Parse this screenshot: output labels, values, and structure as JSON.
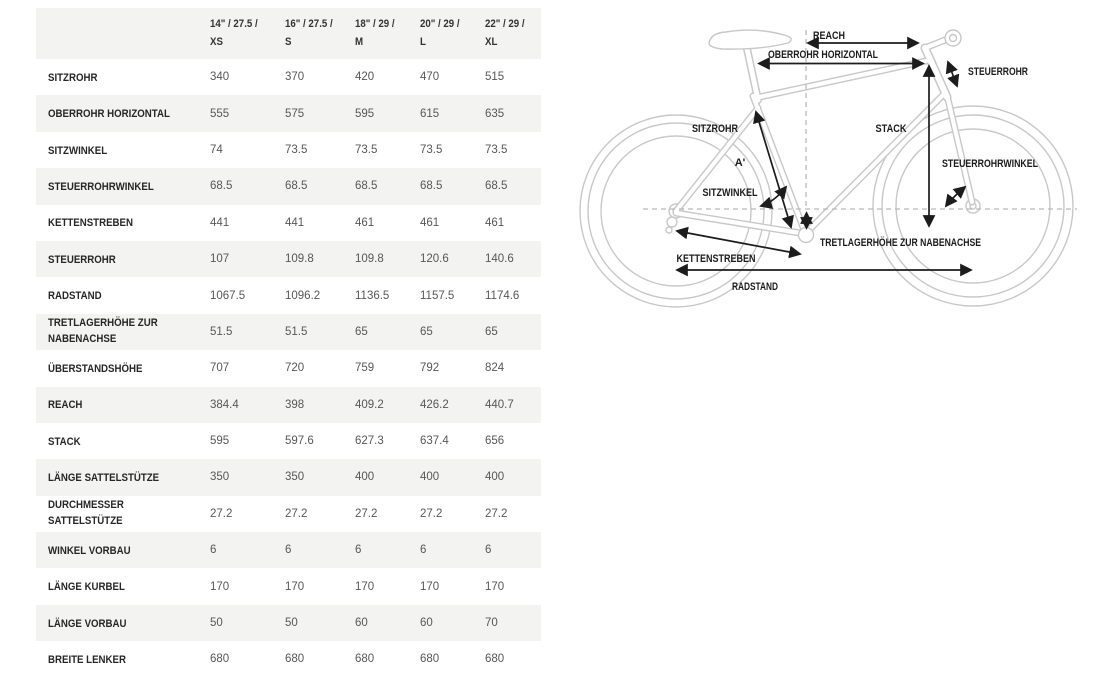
{
  "table": {
    "size_headers": [
      {
        "size": "14\" / 27.5 /",
        "code": "XS"
      },
      {
        "size": "16\" / 27.5 /",
        "code": "S"
      },
      {
        "size": "18\" / 29 /",
        "code": "M"
      },
      {
        "size": "20\" / 29 /",
        "code": "L"
      },
      {
        "size": "22\" / 29 /",
        "code": "XL"
      }
    ],
    "rows": [
      {
        "label": "SITZROHR",
        "values": [
          "340",
          "370",
          "420",
          "470",
          "515"
        ]
      },
      {
        "label": "OBERROHR HORIZONTAL",
        "values": [
          "555",
          "575",
          "595",
          "615",
          "635"
        ]
      },
      {
        "label": "SITZWINKEL",
        "values": [
          "74",
          "73.5",
          "73.5",
          "73.5",
          "73.5"
        ]
      },
      {
        "label": "STEUERROHRWINKEL",
        "values": [
          "68.5",
          "68.5",
          "68.5",
          "68.5",
          "68.5"
        ]
      },
      {
        "label": "KETTENSTREBEN",
        "values": [
          "441",
          "441",
          "461",
          "461",
          "461"
        ]
      },
      {
        "label": "STEUERROHR",
        "values": [
          "107",
          "109.8",
          "109.8",
          "120.6",
          "140.6"
        ]
      },
      {
        "label": "RADSTAND",
        "values": [
          "1067.5",
          "1096.2",
          "1136.5",
          "1157.5",
          "1174.6"
        ]
      },
      {
        "label": "TRETLAGERHÖHE ZUR NABENACHSE",
        "values": [
          "51.5",
          "51.5",
          "65",
          "65",
          "65"
        ]
      },
      {
        "label": "ÜBERSTANDSHÖHE",
        "values": [
          "707",
          "720",
          "759",
          "792",
          "824"
        ]
      },
      {
        "label": "REACH",
        "values": [
          "384.4",
          "398",
          "409.2",
          "426.2",
          "440.7"
        ]
      },
      {
        "label": "STACK",
        "values": [
          "595",
          "597.6",
          "627.3",
          "637.4",
          "656"
        ]
      },
      {
        "label": "LÄNGE SATTELSTÜTZE",
        "values": [
          "350",
          "350",
          "400",
          "400",
          "400"
        ]
      },
      {
        "label": "DURCHMESSER SATTELSTÜTZE",
        "values": [
          "27.2",
          "27.2",
          "27.2",
          "27.2",
          "27.2"
        ]
      },
      {
        "label": "WINKEL VORBAU",
        "values": [
          "6",
          "6",
          "6",
          "6",
          "6"
        ]
      },
      {
        "label": "LÄNGE KURBEL",
        "values": [
          "170",
          "170",
          "170",
          "170",
          "170"
        ]
      },
      {
        "label": "LÄNGE VORBAU",
        "values": [
          "50",
          "50",
          "60",
          "60",
          "70"
        ]
      },
      {
        "label": "BREITE LENKER",
        "values": [
          "680",
          "680",
          "680",
          "680",
          "680"
        ]
      }
    ]
  },
  "diagram": {
    "labels": {
      "reach": "REACH",
      "oberrohr": "OBERROHR HORIZONTAL",
      "steuerrohr": "STEUERROHR",
      "sitzrohr": "SITZROHR",
      "stack": "STACK",
      "steuerrohrwinkel": "STEUERROHRWINKEL",
      "sitzwinkel": "SITZWINKEL",
      "a_mark": "A'",
      "kettenstreben": "KETTENSTREBEN",
      "tretlagerhoehe": "TRETLAGERHÖHE ZUR NABENACHSE",
      "radstand": "RADSTAND"
    }
  },
  "colors": {
    "row_alt_bg": "#f3f3f1",
    "bike_line": "#c8c8c8",
    "measure_line": "#1c1c1c",
    "value_text": "#575757",
    "label_text": "#262626"
  }
}
